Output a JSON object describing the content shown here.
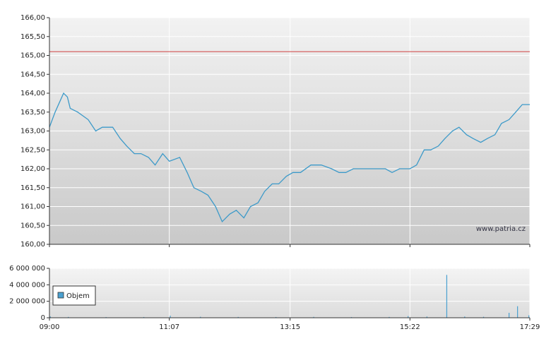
{
  "chart_data": [
    {
      "type": "line",
      "xlim": [
        540,
        1049
      ],
      "xticks": [
        540,
        667,
        795,
        922,
        1049
      ],
      "ylim": [
        160,
        166
      ],
      "yticks": [
        {
          "value": 160,
          "label": "160,00"
        },
        {
          "value": 160.5,
          "label": "160,50"
        },
        {
          "value": 161,
          "label": "161,00"
        },
        {
          "value": 161.5,
          "label": "161,50"
        },
        {
          "value": 162,
          "label": "162,00"
        },
        {
          "value": 162.5,
          "label": "162,50"
        },
        {
          "value": 163,
          "label": "163,00"
        },
        {
          "value": 163.5,
          "label": "163,50"
        },
        {
          "value": 164,
          "label": "164,00"
        },
        {
          "value": 164.5,
          "label": "164,50"
        },
        {
          "value": 165,
          "label": "165,00"
        },
        {
          "value": 165.5,
          "label": "165,50"
        },
        {
          "value": 166,
          "label": "166,00"
        }
      ],
      "grid": true,
      "reference_line": {
        "value": 165.1,
        "color": "#d04040"
      },
      "watermark": "www.patria.cz",
      "series": [
        {
          "color": "#3d9ac9",
          "x": [
            540,
            546,
            555,
            559,
            562,
            570,
            581,
            589,
            596,
            607,
            615,
            622,
            630,
            637,
            645,
            652,
            660,
            667,
            678,
            686,
            693,
            701,
            708,
            716,
            723,
            731,
            738,
            746,
            753,
            761,
            768,
            776,
            783,
            791,
            798,
            806,
            817,
            828,
            839,
            847,
            854,
            862,
            869,
            877,
            884,
            896,
            903,
            911,
            922,
            929,
            937,
            944,
            952,
            959,
            967,
            974,
            982,
            989,
            997,
            1004,
            1012,
            1019,
            1027,
            1034,
            1041,
            1049
          ],
          "values": [
            163.1,
            163.5,
            164.0,
            163.9,
            163.6,
            163.5,
            163.3,
            163.0,
            163.1,
            163.1,
            162.8,
            162.6,
            162.4,
            162.4,
            162.3,
            162.1,
            162.4,
            162.2,
            162.3,
            161.9,
            161.5,
            161.4,
            161.3,
            161.0,
            160.6,
            160.8,
            160.9,
            160.7,
            161.0,
            161.1,
            161.4,
            161.6,
            161.6,
            161.8,
            161.9,
            161.9,
            162.1,
            162.1,
            162.0,
            161.9,
            161.9,
            162.0,
            162.0,
            162.0,
            162.0,
            162.0,
            161.9,
            162.0,
            162.0,
            162.1,
            162.5,
            162.5,
            162.6,
            162.8,
            163.0,
            163.1,
            162.9,
            162.8,
            162.7,
            162.8,
            162.9,
            163.2,
            163.3,
            163.5,
            163.7,
            163.7
          ]
        }
      ]
    },
    {
      "type": "bar",
      "xlim": [
        540,
        1049
      ],
      "xticks": [
        {
          "value": 540,
          "label": "09:00"
        },
        {
          "value": 667,
          "label": "11:07"
        },
        {
          "value": 795,
          "label": "13:15"
        },
        {
          "value": 922,
          "label": "15:22"
        },
        {
          "value": 1049,
          "label": "17:29"
        }
      ],
      "ylim": [
        0,
        6000000
      ],
      "yticks": [
        {
          "value": 0,
          "label": "0"
        },
        {
          "value": 2000000,
          "label": "2 000 000"
        },
        {
          "value": 4000000,
          "label": "4 000 000"
        },
        {
          "value": 6000000,
          "label": "6 000 000"
        }
      ],
      "grid": true,
      "legend": "left",
      "series": [
        {
          "name": "Objem",
          "color": "#4aa0d0",
          "x": [
            541,
            560,
            600,
            640,
            668,
            700,
            740,
            780,
            820,
            860,
            900,
            920,
            940,
            961,
            980,
            1000,
            1027,
            1036,
            1048
          ],
          "values": [
            150000,
            100000,
            80000,
            90000,
            250000,
            120000,
            100000,
            90000,
            110000,
            80000,
            100000,
            200000,
            150000,
            5200000,
            150000,
            120000,
            600000,
            1400000,
            300000
          ]
        }
      ]
    }
  ]
}
